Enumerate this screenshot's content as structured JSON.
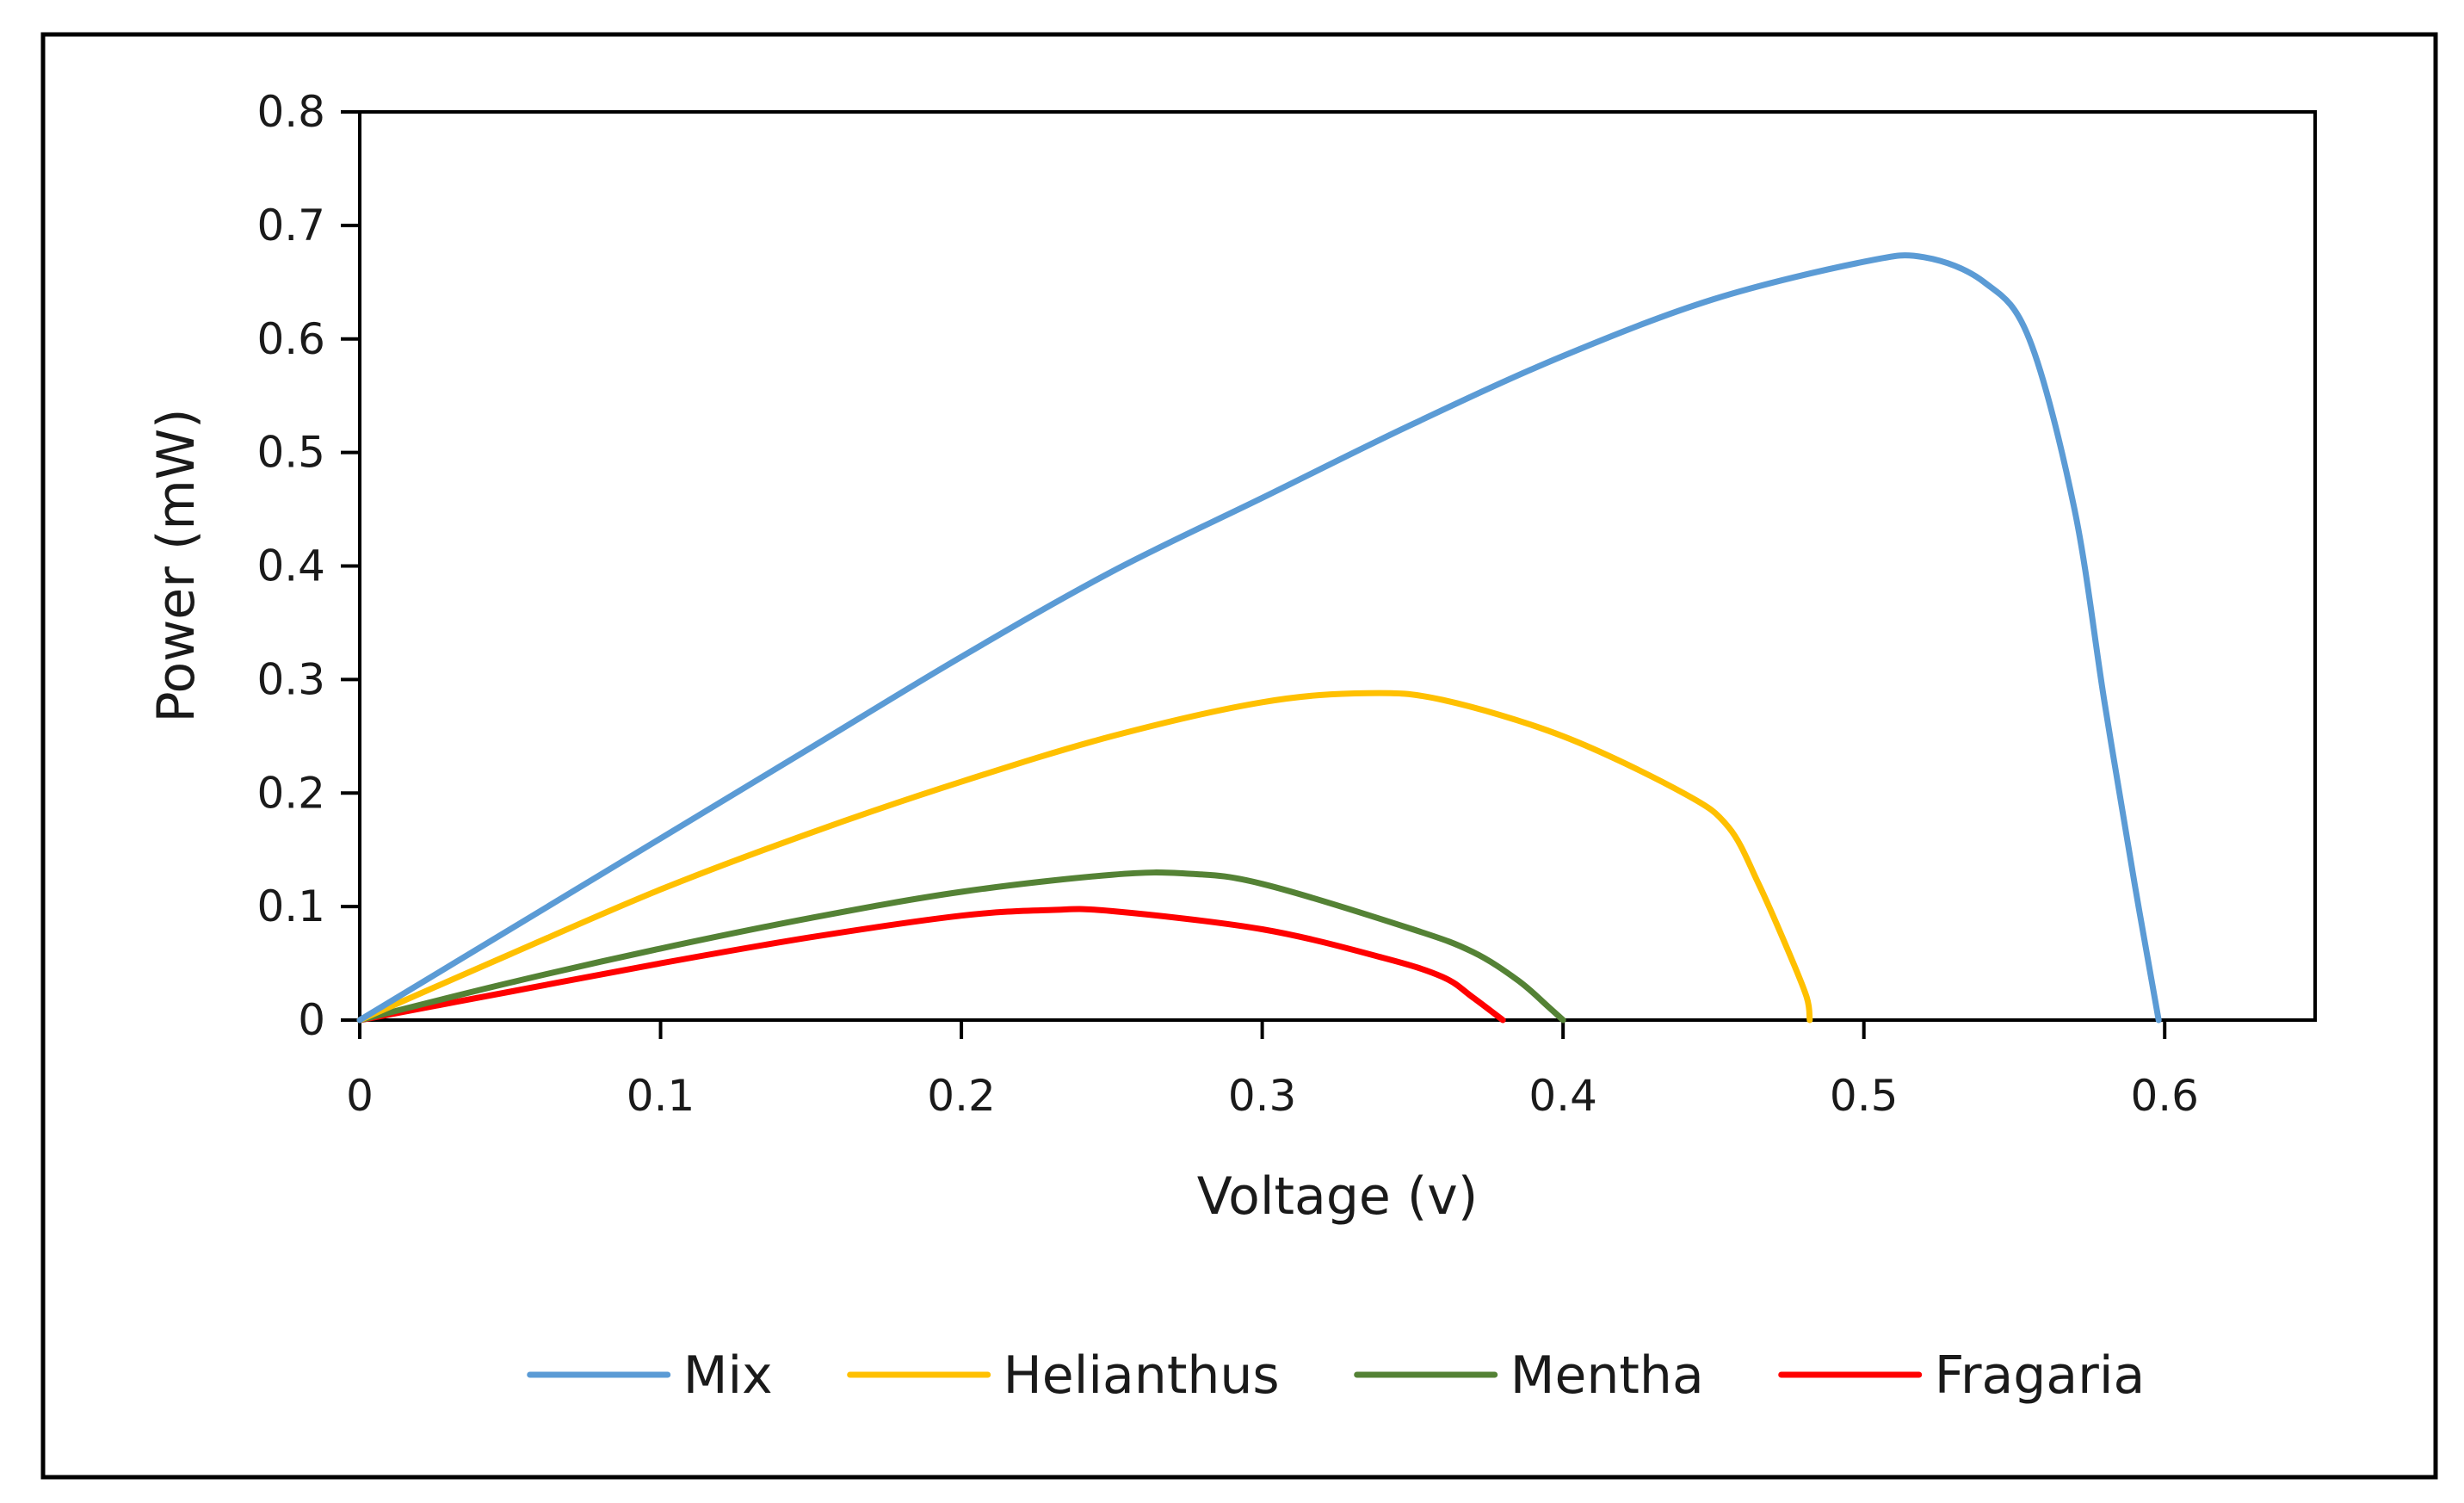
{
  "chart_data": {
    "type": "line",
    "title": "",
    "xlabel": "Voltage (v)",
    "ylabel": "Power (mW)",
    "xlim": [
      0,
      0.65
    ],
    "ylim": [
      0,
      0.8
    ],
    "xticks": [
      0,
      0.1,
      0.2,
      0.3,
      0.4,
      0.5,
      0.6
    ],
    "yticks": [
      0,
      0.1,
      0.2,
      0.3,
      0.4,
      0.5,
      0.6,
      0.7,
      0.8
    ],
    "xtick_labels": [
      "0",
      "0.1",
      "0.2",
      "0.3",
      "0.4",
      "0.5",
      "0.6"
    ],
    "ytick_labels": [
      "0",
      "0.1",
      "0.2",
      "0.3",
      "0.4",
      "0.5",
      "0.6",
      "0.7",
      "0.8"
    ],
    "grid": false,
    "legend_position": "bottom",
    "series": [
      {
        "name": "Mix",
        "color": "#5B9BD5",
        "x": [
          0,
          0.05,
          0.1,
          0.15,
          0.2,
          0.25,
          0.3,
          0.35,
          0.4,
          0.45,
          0.5,
          0.52,
          0.54,
          0.555,
          0.57,
          0.58,
          0.59,
          0.598
        ],
        "y": [
          0,
          0.08,
          0.16,
          0.24,
          0.32,
          0.395,
          0.46,
          0.525,
          0.585,
          0.635,
          0.668,
          0.672,
          0.65,
          0.6,
          0.45,
          0.28,
          0.12,
          0
        ]
      },
      {
        "name": "Helianthus",
        "color": "#FFC000",
        "x": [
          0,
          0.05,
          0.1,
          0.15,
          0.2,
          0.25,
          0.3,
          0.335,
          0.36,
          0.4,
          0.44,
          0.455,
          0.465,
          0.475,
          0.481,
          0.482
        ],
        "y": [
          0,
          0.058,
          0.115,
          0.165,
          0.21,
          0.25,
          0.28,
          0.288,
          0.282,
          0.25,
          0.2,
          0.17,
          0.12,
          0.06,
          0.02,
          0
        ]
      },
      {
        "name": "Mentha",
        "color": "#548235",
        "x": [
          0,
          0.05,
          0.1,
          0.15,
          0.2,
          0.25,
          0.275,
          0.3,
          0.35,
          0.37,
          0.385,
          0.395,
          0.4
        ],
        "y": [
          0,
          0.033,
          0.063,
          0.09,
          0.113,
          0.128,
          0.129,
          0.12,
          0.08,
          0.06,
          0.035,
          0.012,
          0
        ]
      },
      {
        "name": "Fragaria",
        "color": "#FF0000",
        "x": [
          0,
          0.05,
          0.1,
          0.15,
          0.2,
          0.23,
          0.25,
          0.3,
          0.34,
          0.36,
          0.37,
          0.38
        ],
        "y": [
          0,
          0.025,
          0.05,
          0.073,
          0.092,
          0.097,
          0.096,
          0.08,
          0.055,
          0.038,
          0.02,
          0
        ]
      }
    ]
  }
}
